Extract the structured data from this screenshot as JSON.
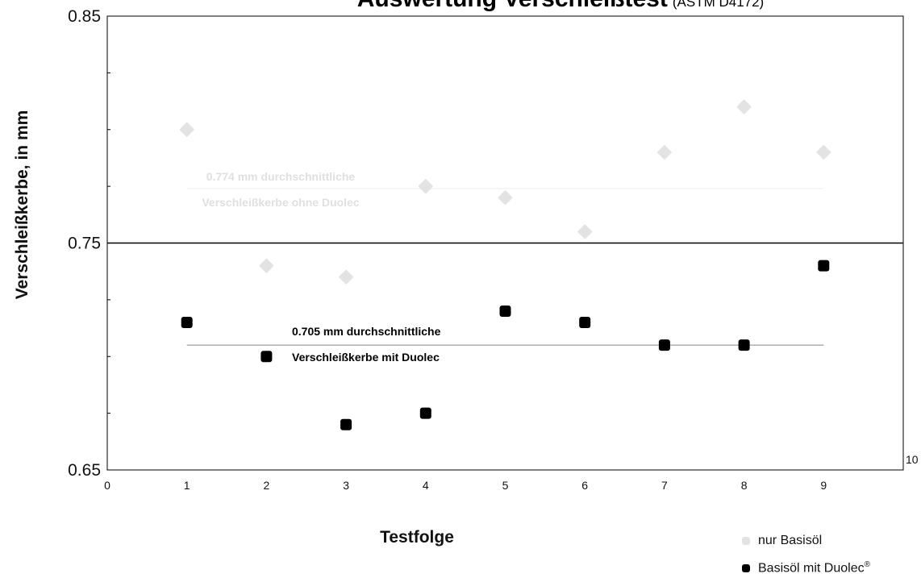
{
  "chart_data": {
    "type": "scatter",
    "title_main": "Auswertung Verschleißtest",
    "title_sub": "(ASTM D4172)",
    "xlabel": "Testfolge",
    "ylabel": "Verschleißkerbe, in mm",
    "xlim": [
      0,
      10
    ],
    "ylim": [
      0.65,
      0.85
    ],
    "x_ticks": [
      "0",
      "1",
      "2",
      "3",
      "4",
      "5",
      "6",
      "7",
      "8",
      "9",
      "10"
    ],
    "y_ticks": [
      "0.65",
      "0.75",
      "0.85"
    ],
    "reference_value": 0.75,
    "series": [
      {
        "name": "nur Basisöl",
        "color": "#e3e3e3",
        "marker": "diamond",
        "x": [
          1,
          2,
          3,
          4,
          5,
          6,
          7,
          8,
          9
        ],
        "y": [
          0.8,
          0.74,
          0.735,
          0.775,
          0.77,
          0.755,
          0.79,
          0.81,
          0.79
        ],
        "mean": 0.774,
        "mean_label_line1": "0.774 mm durchschnittliche",
        "mean_label_line2": "Verschleißkerbe ohne Duolec"
      },
      {
        "name": "Basisöl mit Duolec®",
        "color": "#000000",
        "marker": "square",
        "x": [
          1,
          2,
          3,
          4,
          5,
          6,
          7,
          8,
          9
        ],
        "y": [
          0.715,
          0.7,
          0.67,
          0.675,
          0.72,
          0.715,
          0.705,
          0.705,
          0.74
        ],
        "mean": 0.705,
        "mean_label_line1": "0.705 mm durchschnittliche",
        "mean_label_line2": "Verschleißkerbe mit Duolec"
      }
    ],
    "legend_position": "bottom-right"
  },
  "legend": {
    "item1": "nur Basisöl",
    "item2_text": "Basisöl mit Duolec",
    "item2_sup": "®"
  }
}
